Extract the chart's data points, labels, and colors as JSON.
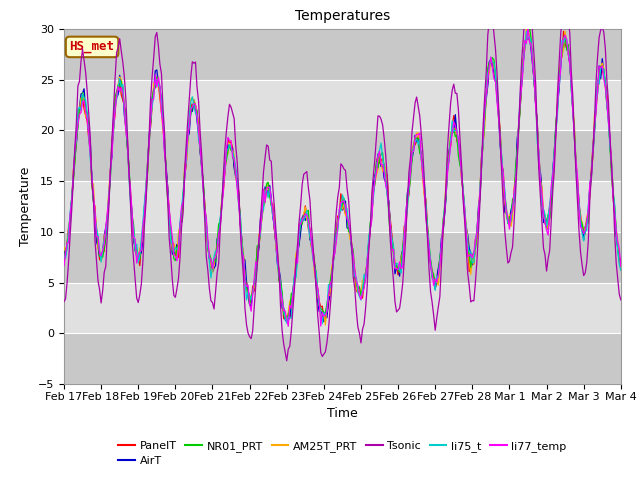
{
  "title": "Temperatures",
  "xlabel": "Time",
  "ylabel": "Temperature",
  "ylim": [
    -5,
    30
  ],
  "yticks": [
    -5,
    0,
    5,
    10,
    15,
    20,
    25,
    30
  ],
  "background_color": "#ffffff",
  "plot_bg_color": "#e0e0e0",
  "grid_color": "#ffffff",
  "band_colors": [
    "#c8c8c8",
    "#e0e0e0"
  ],
  "series": [
    {
      "label": "PanelT",
      "color": "#ff0000"
    },
    {
      "label": "AirT",
      "color": "#0000cc"
    },
    {
      "label": "NR01_PRT",
      "color": "#00cc00"
    },
    {
      "label": "AM25T_PRT",
      "color": "#ffaa00"
    },
    {
      "label": "Tsonic",
      "color": "#aa00aa"
    },
    {
      "label": "li75_t",
      "color": "#00cccc"
    },
    {
      "label": "li77_temp",
      "color": "#ff00ff"
    }
  ],
  "annotation_text": "HS_met",
  "annotation_color": "#cc0000",
  "annotation_bg": "#ffffcc",
  "annotation_border": "#996600",
  "title_fontsize": 10,
  "label_fontsize": 9,
  "tick_fontsize": 8,
  "legend_fontsize": 8,
  "day_labels": [
    "Feb 17",
    "Feb 18",
    "Feb 19",
    "Feb 20",
    "Feb 21",
    "Feb 22",
    "Feb 23",
    "Feb 24",
    "Feb 25",
    "Feb 26",
    "Feb 27",
    "Feb 28",
    "Mar 1",
    "Mar 2",
    "Mar 3",
    "Mar 4"
  ]
}
